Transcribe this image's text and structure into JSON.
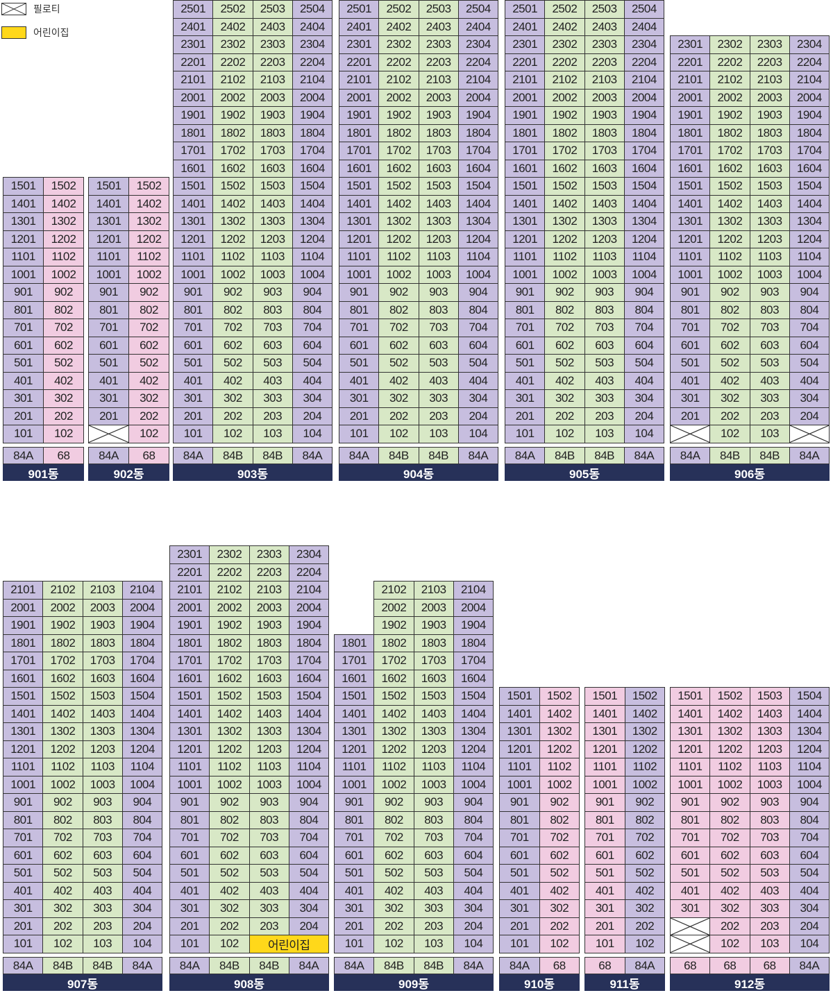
{
  "legend": [
    {
      "label": "필로티",
      "kind": "X"
    },
    {
      "label": "어린이집",
      "kind": "Y",
      "color": "#ffd81a"
    }
  ],
  "colors": {
    "purple": "#c7bedf",
    "green": "#d8e8c6",
    "pink": "#f1cce1",
    "yellow": "#ffd81a",
    "navy": "#273159"
  },
  "buildings": [
    {
      "name": "901동",
      "types": [
        "84A",
        "68"
      ],
      "top_floor": 15,
      "column_colors": [
        "P",
        "K"
      ],
      "types_colors": [
        "P",
        "K"
      ],
      "specials": []
    },
    {
      "name": "902동",
      "types": [
        "84A",
        "68"
      ],
      "top_floor": 15,
      "column_colors": [
        "P",
        "K"
      ],
      "types_colors": [
        "P",
        "K"
      ],
      "specials": [
        {
          "floor": 1,
          "col": 0,
          "kind": "X"
        }
      ]
    },
    {
      "name": "903동",
      "types": [
        "84A",
        "84B",
        "84B",
        "84A"
      ],
      "top_floor": 25,
      "column_colors": [
        "P",
        "G",
        "G",
        "P"
      ],
      "types_colors": [
        "P",
        "G",
        "G",
        "P"
      ],
      "specials": []
    },
    {
      "name": "904동",
      "types": [
        "84A",
        "84B",
        "84B",
        "84A"
      ],
      "top_floor": 25,
      "column_colors": [
        "P",
        "G",
        "G",
        "P"
      ],
      "types_colors": [
        "P",
        "G",
        "G",
        "P"
      ],
      "specials": []
    },
    {
      "name": "905동",
      "types": [
        "84A",
        "84B",
        "84B",
        "84A"
      ],
      "top_floor": 25,
      "column_colors": [
        "P",
        "G",
        "G",
        "P"
      ],
      "types_colors": [
        "P",
        "G",
        "G",
        "P"
      ],
      "specials": []
    },
    {
      "name": "906동",
      "types": [
        "84A",
        "84B",
        "84B",
        "84A"
      ],
      "top_floor": 23,
      "column_colors": [
        "P",
        "G",
        "G",
        "P"
      ],
      "types_colors": [
        "P",
        "G",
        "G",
        "P"
      ],
      "specials": [
        {
          "floor": 1,
          "col": 0,
          "kind": "X"
        },
        {
          "floor": 1,
          "col": 3,
          "kind": "X"
        }
      ]
    },
    {
      "name": "907동",
      "types": [
        "84A",
        "84B",
        "84B",
        "84A"
      ],
      "top_floor": 21,
      "column_colors": [
        "P",
        "G",
        "G",
        "P"
      ],
      "types_colors": [
        "P",
        "G",
        "G",
        "P"
      ],
      "specials": []
    },
    {
      "name": "908동",
      "types": [
        "84A",
        "84B",
        "84B",
        "84A"
      ],
      "top_floor": 23,
      "column_colors": [
        "P",
        "G",
        "G",
        "P"
      ],
      "types_colors": [
        "P",
        "G",
        "G",
        "P"
      ],
      "specials": [
        {
          "floor": 1,
          "col": 2,
          "kind": "Y",
          "label": "어린이집",
          "span": 2
        }
      ]
    },
    {
      "name": "909동",
      "types": [
        "84A",
        "84B",
        "84B",
        "84A"
      ],
      "top_floor": 21,
      "column_colors": [
        "P",
        "G",
        "G",
        "P"
      ],
      "types_colors": [
        "P",
        "G",
        "G",
        "P"
      ],
      "column_top_floors": [
        18,
        21,
        21,
        21
      ],
      "specials": []
    },
    {
      "name": "910동",
      "types": [
        "84A",
        "68"
      ],
      "top_floor": 15,
      "column_colors": [
        "P",
        "K"
      ],
      "types_colors": [
        "P",
        "K"
      ],
      "specials": []
    },
    {
      "name": "911동",
      "types": [
        "68",
        "84A"
      ],
      "top_floor": 15,
      "column_colors": [
        "K",
        "P"
      ],
      "types_colors": [
        "K",
        "P"
      ],
      "specials": []
    },
    {
      "name": "912동",
      "types": [
        "68",
        "68",
        "68",
        "84A"
      ],
      "top_floor": 15,
      "column_colors": [
        "K",
        "K",
        "K",
        "P"
      ],
      "types_colors": [
        "K",
        "K",
        "K",
        "P"
      ],
      "specials": [
        {
          "floor": 2,
          "col": 0,
          "kind": "X"
        },
        {
          "floor": 1,
          "col": 0,
          "kind": "X"
        }
      ]
    }
  ]
}
